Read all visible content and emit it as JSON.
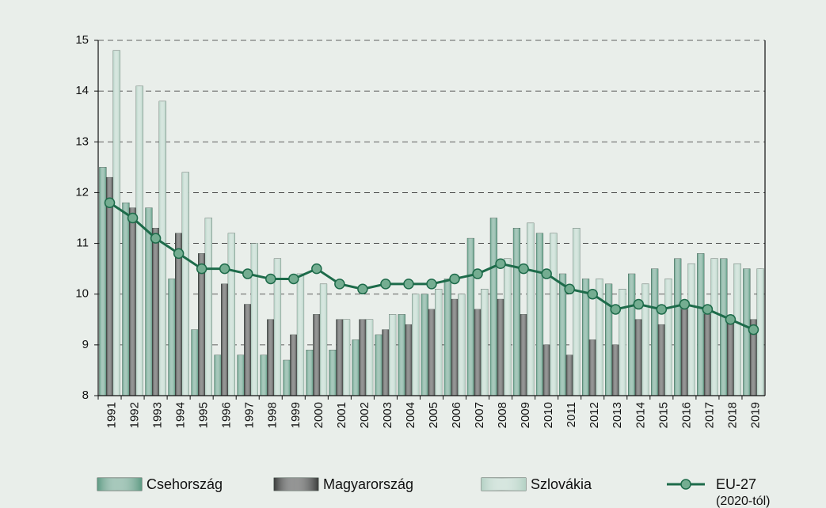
{
  "chart_data": {
    "type": "bar",
    "categories": [
      "1991",
      "1992",
      "1993",
      "1994",
      "1995",
      "1996",
      "1997",
      "1998",
      "1999",
      "2000",
      "2001",
      "2002",
      "2003",
      "2004",
      "2005",
      "2006",
      "2007",
      "2008",
      "2009",
      "2010",
      "2011",
      "2012",
      "2013",
      "2014",
      "2015",
      "2016",
      "2017",
      "2018",
      "2019"
    ],
    "series": [
      {
        "name": "Csehország",
        "color": "#5e9a83",
        "type": "bar",
        "values": [
          12.5,
          11.8,
          11.7,
          10.3,
          9.3,
          8.8,
          8.8,
          8.8,
          8.7,
          8.9,
          8.9,
          9.1,
          9.2,
          9.6,
          10.0,
          10.3,
          11.1,
          11.5,
          11.3,
          11.2,
          10.4,
          10.3,
          10.2,
          10.4,
          10.5,
          10.7,
          10.8,
          10.7,
          10.5
        ]
      },
      {
        "name": "Magyarország",
        "color": "#3b3d3c",
        "type": "bar",
        "values": [
          12.3,
          11.7,
          11.3,
          11.2,
          10.8,
          10.2,
          9.8,
          9.5,
          9.2,
          9.6,
          9.5,
          9.5,
          9.3,
          9.4,
          9.7,
          9.9,
          9.7,
          9.9,
          9.6,
          9.0,
          8.8,
          9.1,
          9.0,
          9.5,
          9.4,
          9.7,
          9.6,
          9.5,
          9.5
        ]
      },
      {
        "name": "Szlovákia",
        "color": "#b4d1c4",
        "type": "bar",
        "values": [
          14.8,
          14.1,
          13.8,
          12.4,
          11.5,
          11.2,
          11.0,
          10.7,
          10.4,
          10.2,
          9.5,
          9.5,
          9.6,
          10.0,
          10.1,
          10.0,
          10.1,
          10.7,
          11.4,
          11.2,
          11.3,
          10.3,
          10.1,
          10.2,
          10.3,
          10.6,
          10.7,
          10.6,
          10.5
        ]
      },
      {
        "name": "EU-27",
        "color": "#1d6b4a",
        "marker_color": "#74ad91",
        "type": "line",
        "values": [
          11.8,
          11.5,
          11.1,
          10.8,
          10.5,
          10.5,
          10.4,
          10.3,
          10.3,
          10.5,
          10.2,
          10.1,
          10.2,
          10.2,
          10.2,
          10.3,
          10.4,
          10.6,
          10.5,
          10.4,
          10.1,
          10.0,
          9.7,
          9.8,
          9.7,
          9.8,
          9.7,
          9.5,
          9.3
        ]
      }
    ],
    "legend_note": "(2020-tól)",
    "ylim": [
      8,
      15
    ],
    "yticks": [
      8,
      9,
      10,
      11,
      12,
      13,
      14,
      15
    ],
    "grid": true
  }
}
